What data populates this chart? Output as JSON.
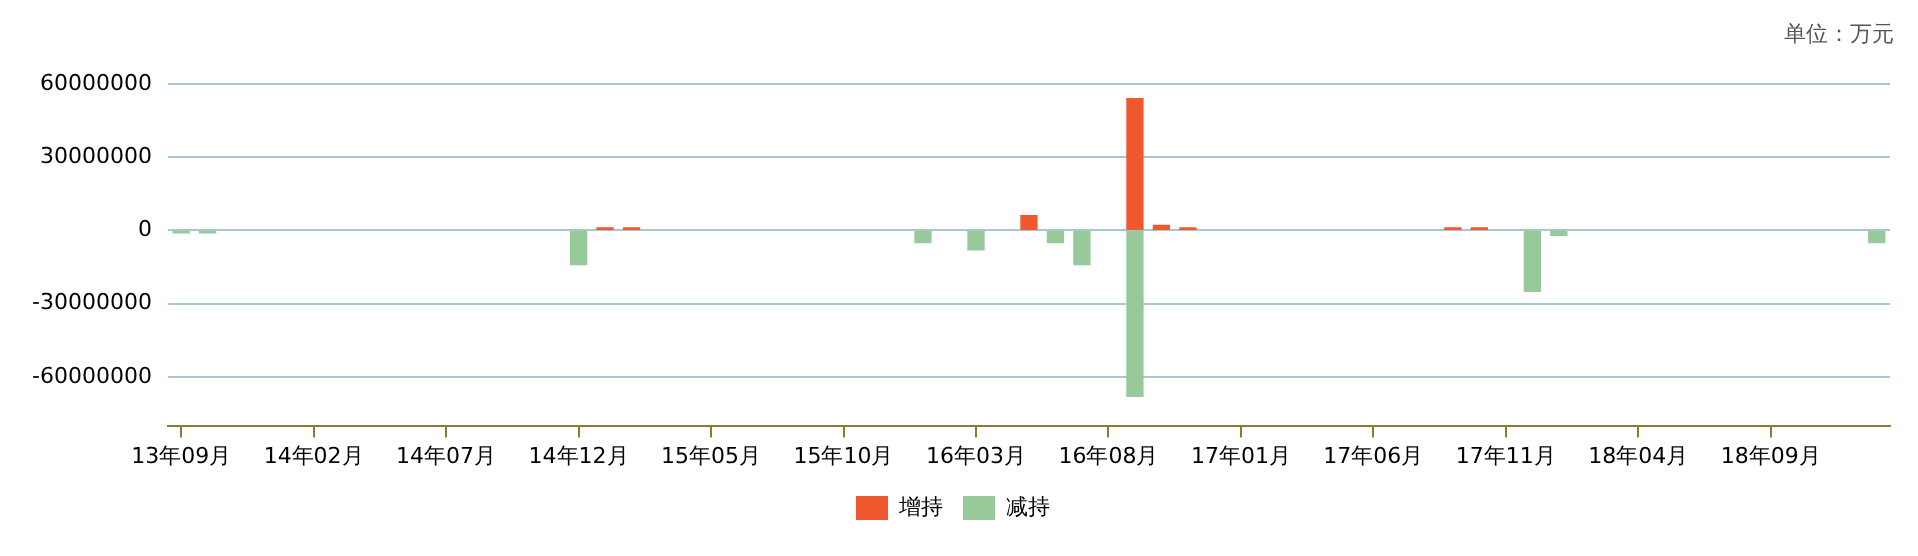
{
  "chart_data": {
    "type": "bar",
    "stacked": true,
    "annotations": [
      "单位：万元"
    ],
    "categories": [
      "13年09月",
      null,
      null,
      null,
      null,
      "14年02月",
      null,
      null,
      null,
      null,
      "14年07月",
      null,
      null,
      null,
      null,
      "14年12月",
      null,
      null,
      null,
      null,
      "15年05月",
      null,
      null,
      null,
      null,
      "15年10月",
      null,
      null,
      null,
      null,
      "16年03月",
      null,
      null,
      null,
      null,
      "16年08月",
      null,
      null,
      null,
      null,
      "17年01月",
      null,
      null,
      null,
      null,
      "17年06月",
      null,
      null,
      null,
      null,
      "17年11月",
      null,
      null,
      null,
      null,
      "18年04月",
      null,
      null,
      null,
      null,
      "18年09月",
      null,
      null,
      null,
      null
    ],
    "series": [
      {
        "name": "增持",
        "color": "#f0582e",
        "values": [
          null,
          null,
          null,
          null,
          null,
          null,
          null,
          null,
          null,
          null,
          null,
          null,
          null,
          null,
          null,
          null,
          1000000,
          1000000,
          null,
          null,
          null,
          null,
          null,
          null,
          null,
          null,
          null,
          null,
          null,
          null,
          null,
          null,
          6000000,
          null,
          null,
          null,
          54000000,
          2000000,
          1000000,
          null,
          null,
          null,
          null,
          null,
          null,
          null,
          null,
          null,
          1000000,
          1000000,
          null,
          null,
          null,
          null,
          null,
          null,
          null,
          null,
          null,
          null,
          null,
          null,
          null,
          null,
          null
        ]
      },
      {
        "name": "减持",
        "color": "#98c99a",
        "values": [
          -1000000,
          -1000000,
          null,
          null,
          null,
          null,
          null,
          null,
          null,
          null,
          null,
          null,
          null,
          null,
          null,
          -14000000,
          null,
          null,
          null,
          null,
          null,
          null,
          null,
          null,
          null,
          null,
          null,
          null,
          -5000000,
          null,
          -8000000,
          null,
          null,
          -5000000,
          -14000000,
          null,
          -68000000,
          null,
          null,
          null,
          null,
          null,
          null,
          null,
          null,
          null,
          null,
          null,
          null,
          null,
          null,
          -25000000,
          -2000000,
          null,
          null,
          null,
          null,
          null,
          null,
          null,
          null,
          null,
          null,
          null,
          -5000000
        ]
      }
    ],
    "ylim": [
      -80000000,
      60000000
    ],
    "yticks": [
      -60000000,
      -30000000,
      0,
      30000000,
      60000000
    ],
    "grid": "y",
    "legend": "bottom"
  }
}
